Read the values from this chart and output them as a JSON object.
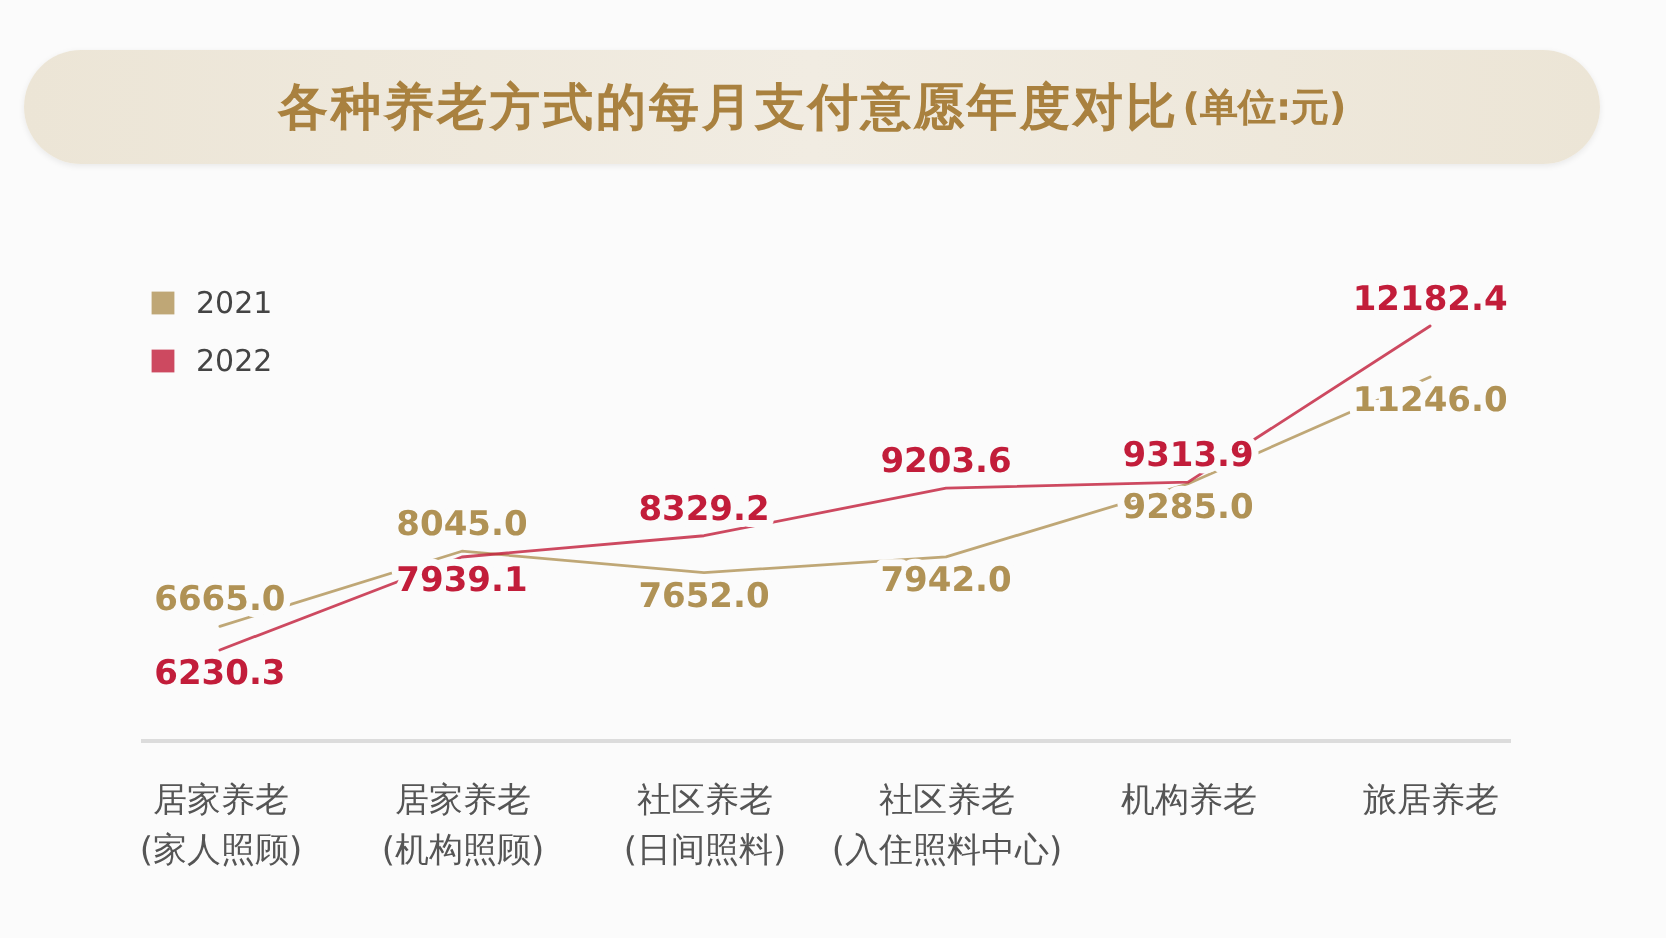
{
  "chart_data": {
    "type": "line",
    "title": "各种养老方式的每月支付意愿年度对比",
    "subtitle": "(单位:元)",
    "categories": [
      "居家养老\n(家人照顾)",
      "居家养老\n(机构照顾)",
      "社区养老\n(日间照料)",
      "社区养老\n(入住照料中心)",
      "机构养老",
      "旅居养老"
    ],
    "series": [
      {
        "name": "2021",
        "color": "#b09255",
        "values": [
          6665.0,
          8045.0,
          7652.0,
          7942.0,
          9285.0,
          11246.0
        ],
        "value_labels": [
          "6665.0",
          "8045.0",
          "7652.0",
          "7942.0",
          "9285.0",
          "11246.0"
        ]
      },
      {
        "name": "2022",
        "color": "#c21d3a",
        "values": [
          6230.3,
          7939.1,
          8329.2,
          9203.6,
          9313.9,
          12182.4
        ],
        "value_labels": [
          "6230.3",
          "7939.1",
          "8329.2",
          "9203.6",
          "9313.9",
          "12182.4"
        ]
      }
    ],
    "legend": "top left",
    "marker": "none"
  }
}
